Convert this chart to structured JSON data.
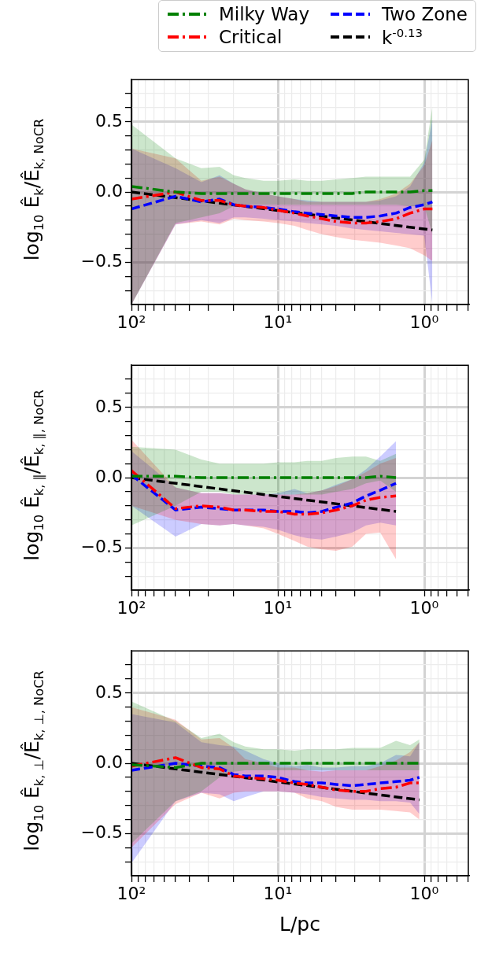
{
  "chart_data": [
    {
      "type": "line",
      "ylabel": "log$_{10}$ Ê$_{k}$/Ê$_{k, NoCR}$",
      "x": [
        100,
        50,
        33.3,
        25,
        20,
        16.7,
        12.5,
        10,
        7.7,
        6.3,
        5,
        4,
        3.1,
        2.5,
        2,
        1.56,
        1.25,
        1,
        0.88
      ],
      "series": [
        {
          "name": "Milky Way",
          "color": "#008000",
          "line_style": "dashdot",
          "values": [
            0.04,
            0.0,
            -0.01,
            -0.01,
            -0.01,
            -0.01,
            -0.01,
            -0.01,
            -0.01,
            -0.01,
            -0.01,
            -0.01,
            -0.01,
            0.0,
            0.0,
            0.0,
            0.0,
            0.01,
            0.01
          ],
          "lower": [
            -0.8,
            -0.22,
            -0.18,
            -0.15,
            -0.1,
            -0.09,
            -0.09,
            -0.09,
            -0.09,
            -0.09,
            -0.09,
            -0.09,
            -0.09,
            -0.09,
            -0.09,
            -0.09,
            -0.1,
            -0.1,
            -0.3
          ],
          "upper": [
            0.48,
            0.24,
            0.17,
            0.18,
            0.12,
            0.1,
            0.08,
            0.08,
            0.09,
            0.08,
            0.08,
            0.09,
            0.1,
            0.11,
            0.11,
            0.11,
            0.11,
            0.23,
            0.61
          ]
        },
        {
          "name": "Critical",
          "color": "#ff0000",
          "line_style": "dashdot",
          "values": [
            -0.05,
            0.0,
            -0.06,
            -0.06,
            -0.09,
            -0.1,
            -0.11,
            -0.13,
            -0.15,
            -0.17,
            -0.19,
            -0.21,
            -0.22,
            -0.22,
            -0.21,
            -0.19,
            -0.15,
            -0.12,
            -0.12
          ],
          "lower": [
            -0.8,
            -0.23,
            -0.21,
            -0.23,
            -0.19,
            -0.2,
            -0.21,
            -0.22,
            -0.24,
            -0.27,
            -0.3,
            -0.32,
            -0.34,
            -0.35,
            -0.36,
            -0.38,
            -0.4,
            -0.45,
            -0.49
          ],
          "upper": [
            0.31,
            0.24,
            0.08,
            0.11,
            0.06,
            0.02,
            -0.01,
            -0.03,
            -0.05,
            -0.07,
            -0.07,
            -0.07,
            -0.07,
            -0.07,
            -0.05,
            -0.01,
            0.06,
            0.19,
            0.37
          ]
        },
        {
          "name": "Two Zone",
          "color": "#0000ff",
          "line_style": "dashed",
          "values": [
            -0.12,
            -0.03,
            -0.07,
            -0.05,
            -0.09,
            -0.1,
            -0.11,
            -0.12,
            -0.14,
            -0.15,
            -0.16,
            -0.17,
            -0.18,
            -0.18,
            -0.17,
            -0.15,
            -0.11,
            -0.09,
            -0.07
          ],
          "lower": [
            -0.8,
            -0.23,
            -0.2,
            -0.22,
            -0.18,
            -0.18,
            -0.19,
            -0.2,
            -0.21,
            -0.22,
            -0.23,
            -0.24,
            -0.26,
            -0.27,
            -0.28,
            -0.29,
            -0.3,
            -0.31,
            -0.8
          ],
          "upper": [
            0.31,
            0.17,
            0.07,
            0.12,
            0.06,
            0.02,
            -0.01,
            -0.03,
            -0.05,
            -0.06,
            -0.07,
            -0.07,
            -0.07,
            -0.07,
            -0.06,
            -0.03,
            0.04,
            0.21,
            0.52
          ]
        },
        {
          "name": "k$^{-0.13}$",
          "color": "#000000",
          "line_style": "dashed",
          "x": [
            100,
            0.88
          ],
          "values": [
            0,
            -0.27
          ]
        }
      ],
      "xlim": [
        100,
        0.5
      ],
      "xticks": [
        {
          "value": 100,
          "label": "10²"
        },
        {
          "value": 90,
          "label": null
        },
        {
          "value": 80,
          "label": null
        },
        {
          "value": 70,
          "label": null
        },
        {
          "value": 60,
          "label": null
        },
        {
          "value": 50,
          "label": null
        },
        {
          "value": 40,
          "label": null
        },
        {
          "value": 30,
          "label": null
        },
        {
          "value": 20,
          "label": null
        },
        {
          "value": 10,
          "label": "10¹"
        },
        {
          "value": 9,
          "label": null
        },
        {
          "value": 8,
          "label": null
        },
        {
          "value": 7,
          "label": null
        },
        {
          "value": 6,
          "label": null
        },
        {
          "value": 5,
          "label": null
        },
        {
          "value": 4,
          "label": null
        },
        {
          "value": 3,
          "label": null
        },
        {
          "value": 2,
          "label": null
        },
        {
          "value": 1,
          "label": "10⁰"
        },
        {
          "value": 0.9,
          "label": null
        },
        {
          "value": 0.8,
          "label": null
        },
        {
          "value": 0.7,
          "label": null
        },
        {
          "value": 0.6,
          "label": null
        },
        {
          "value": 0.5,
          "label": null
        }
      ],
      "ylim": [
        -0.8,
        0.8
      ],
      "yticks": [
        {
          "value": -0.7,
          "label": null
        },
        {
          "value": -0.6,
          "label": null
        },
        {
          "value": -0.5,
          "label": "−0.5"
        },
        {
          "value": -0.4,
          "label": null
        },
        {
          "value": -0.3,
          "label": null
        },
        {
          "value": -0.2,
          "label": null
        },
        {
          "value": -0.1,
          "label": null
        },
        {
          "value": 0,
          "label": "0.0"
        },
        {
          "value": 0.1,
          "label": null
        },
        {
          "value": 0.2,
          "label": null
        },
        {
          "value": 0.3,
          "label": null
        },
        {
          "value": 0.4,
          "label": null
        },
        {
          "value": 0.5,
          "label": "0.5"
        },
        {
          "value": 0.6,
          "label": null
        },
        {
          "value": 0.7,
          "label": null
        }
      ],
      "log": "x",
      "grid": true,
      "legend": "top right"
    },
    {
      "type": "line",
      "ylabel": "log$_{10}$ Ê$_{k, ∥}$/Ê$_{k, ∥, NoCR}$",
      "x": [
        100,
        50,
        33.3,
        25,
        20,
        16.7,
        12.5,
        10,
        7.7,
        6.3,
        5,
        4,
        3.1,
        2.5,
        2,
        1.56
      ],
      "series": [
        {
          "color": "#008000",
          "line_style": "dashdot",
          "values": [
            0.01,
            0.01,
            0.0,
            0.0,
            0.0,
            0.0,
            0.0,
            0.0,
            0.0,
            0.0,
            0.0,
            0.0,
            0.0,
            0.0,
            0.01,
            0.0
          ],
          "lower": [
            -0.34,
            -0.2,
            -0.1,
            -0.1,
            -0.12,
            -0.12,
            -0.12,
            -0.12,
            -0.12,
            -0.12,
            -0.12,
            -0.1,
            -0.08,
            -0.04,
            -0.02,
            -0.1
          ],
          "upper": [
            0.22,
            0.2,
            0.13,
            0.1,
            0.1,
            0.1,
            0.1,
            0.11,
            0.11,
            0.12,
            0.12,
            0.14,
            0.15,
            0.15,
            0.12,
            0.17
          ]
        },
        {
          "color": "#ff0000",
          "line_style": "dashdot",
          "values": [
            0.05,
            -0.22,
            -0.2,
            -0.21,
            -0.23,
            -0.23,
            -0.24,
            -0.24,
            -0.26,
            -0.26,
            -0.25,
            -0.23,
            -0.2,
            -0.16,
            -0.14,
            -0.13
          ],
          "lower": [
            -0.2,
            -0.3,
            -0.33,
            -0.34,
            -0.33,
            -0.34,
            -0.36,
            -0.4,
            -0.45,
            -0.49,
            -0.51,
            -0.52,
            -0.49,
            -0.4,
            -0.39,
            -0.58
          ],
          "upper": [
            0.27,
            -0.07,
            -0.11,
            -0.11,
            -0.12,
            -0.12,
            -0.12,
            -0.12,
            -0.12,
            -0.11,
            -0.09,
            -0.06,
            -0.01,
            0.04,
            0.1,
            0.14
          ]
        },
        {
          "color": "#0000ff",
          "line_style": "dashed",
          "values": [
            0.02,
            -0.23,
            -0.21,
            -0.22,
            -0.23,
            -0.23,
            -0.23,
            -0.24,
            -0.24,
            -0.25,
            -0.24,
            -0.21,
            -0.18,
            -0.13,
            -0.09,
            -0.04
          ],
          "lower": [
            -0.2,
            -0.42,
            -0.33,
            -0.34,
            -0.33,
            -0.34,
            -0.35,
            -0.37,
            -0.41,
            -0.43,
            -0.44,
            -0.42,
            -0.39,
            -0.34,
            -0.32,
            -0.34
          ],
          "upper": [
            0.19,
            -0.07,
            -0.11,
            -0.11,
            -0.12,
            -0.12,
            -0.12,
            -0.11,
            -0.08,
            -0.11,
            -0.09,
            -0.05,
            -0.01,
            0.06,
            0.15,
            0.26
          ]
        },
        {
          "color": "#000000",
          "line_style": "dashed",
          "x": [
            100,
            1.56
          ],
          "values": [
            0,
            -0.24
          ]
        }
      ],
      "xlim": [
        100,
        0.5
      ],
      "xticks": [
        {
          "value": 100,
          "label": "10²"
        },
        {
          "value": 90,
          "label": null
        },
        {
          "value": 80,
          "label": null
        },
        {
          "value": 70,
          "label": null
        },
        {
          "value": 60,
          "label": null
        },
        {
          "value": 50,
          "label": null
        },
        {
          "value": 40,
          "label": null
        },
        {
          "value": 30,
          "label": null
        },
        {
          "value": 20,
          "label": null
        },
        {
          "value": 10,
          "label": "10¹"
        },
        {
          "value": 9,
          "label": null
        },
        {
          "value": 8,
          "label": null
        },
        {
          "value": 7,
          "label": null
        },
        {
          "value": 6,
          "label": null
        },
        {
          "value": 5,
          "label": null
        },
        {
          "value": 4,
          "label": null
        },
        {
          "value": 3,
          "label": null
        },
        {
          "value": 2,
          "label": null
        },
        {
          "value": 1,
          "label": "10⁰"
        },
        {
          "value": 0.9,
          "label": null
        },
        {
          "value": 0.8,
          "label": null
        },
        {
          "value": 0.7,
          "label": null
        },
        {
          "value": 0.6,
          "label": null
        },
        {
          "value": 0.5,
          "label": null
        }
      ],
      "ylim": [
        -0.8,
        0.8
      ],
      "yticks": [
        {
          "value": -0.7,
          "label": null
        },
        {
          "value": -0.6,
          "label": null
        },
        {
          "value": -0.5,
          "label": "−0.5"
        },
        {
          "value": -0.4,
          "label": null
        },
        {
          "value": -0.3,
          "label": null
        },
        {
          "value": -0.2,
          "label": null
        },
        {
          "value": -0.1,
          "label": null
        },
        {
          "value": 0,
          "label": "0.0"
        },
        {
          "value": 0.1,
          "label": null
        },
        {
          "value": 0.2,
          "label": null
        },
        {
          "value": 0.3,
          "label": null
        },
        {
          "value": 0.4,
          "label": null
        },
        {
          "value": 0.5,
          "label": "0.5"
        },
        {
          "value": 0.6,
          "label": null
        },
        {
          "value": 0.7,
          "label": null
        }
      ],
      "log": "x",
      "grid": true
    },
    {
      "type": "line",
      "xlabel": "L/pc",
      "ylabel": "log$_{10}$ Ê$_{k, ⊥}$/Ê$_{k, ⊥, NoCR}$",
      "x": [
        100,
        50,
        33.3,
        25,
        20,
        16.7,
        12.5,
        10,
        7.7,
        6.3,
        5,
        4,
        3.1,
        2.5,
        2,
        1.56,
        1.25,
        1.08
      ],
      "series": [
        {
          "color": "#008000",
          "line_style": "dashdot",
          "values": [
            -0.01,
            -0.03,
            0.0,
            0.0,
            0.0,
            0.0,
            0.0,
            0.0,
            0.0,
            0.0,
            0.0,
            0.0,
            0.0,
            0.0,
            0.0,
            0.0,
            0.0,
            0.0
          ],
          "lower": [
            -0.57,
            -0.27,
            -0.2,
            -0.1,
            -0.06,
            -0.05,
            -0.05,
            -0.05,
            -0.05,
            -0.05,
            -0.05,
            -0.05,
            -0.05,
            -0.05,
            -0.05,
            -0.05,
            -0.05,
            -0.05
          ],
          "upper": [
            0.44,
            0.3,
            0.18,
            0.21,
            0.15,
            0.12,
            0.1,
            0.1,
            0.09,
            0.1,
            0.1,
            0.1,
            0.11,
            0.11,
            0.11,
            0.16,
            0.13,
            0.17
          ]
        },
        {
          "color": "#ff0000",
          "line_style": "dashdot",
          "values": [
            -0.02,
            0.04,
            -0.03,
            -0.04,
            -0.09,
            -0.1,
            -0.11,
            -0.12,
            -0.14,
            -0.15,
            -0.17,
            -0.19,
            -0.2,
            -0.2,
            -0.18,
            -0.17,
            -0.14,
            -0.14
          ],
          "lower": [
            -0.6,
            -0.29,
            -0.21,
            -0.25,
            -0.21,
            -0.2,
            -0.2,
            -0.2,
            -0.21,
            -0.25,
            -0.27,
            -0.31,
            -0.33,
            -0.33,
            -0.33,
            -0.34,
            -0.35,
            -0.4
          ],
          "upper": [
            0.4,
            0.31,
            0.17,
            0.18,
            0.11,
            0.03,
            0.0,
            -0.03,
            -0.03,
            -0.05,
            -0.06,
            -0.05,
            -0.05,
            -0.05,
            -0.02,
            0.02,
            0.08,
            0.15
          ]
        },
        {
          "color": "#0000ff",
          "line_style": "dashed",
          "values": [
            -0.05,
            0.0,
            -0.02,
            -0.03,
            -0.08,
            -0.09,
            -0.09,
            -0.1,
            -0.13,
            -0.14,
            -0.14,
            -0.15,
            -0.16,
            -0.15,
            -0.14,
            -0.13,
            -0.12,
            -0.1
          ],
          "lower": [
            -0.71,
            -0.27,
            -0.21,
            -0.22,
            -0.27,
            -0.24,
            -0.2,
            -0.2,
            -0.21,
            -0.22,
            -0.24,
            -0.25,
            -0.26,
            -0.26,
            -0.27,
            -0.27,
            -0.28,
            -0.36
          ],
          "upper": [
            0.35,
            0.29,
            0.15,
            0.13,
            0.12,
            0.09,
            0.03,
            0.0,
            -0.02,
            -0.01,
            -0.03,
            -0.03,
            -0.02,
            -0.02,
            0.0,
            0.06,
            0.05,
            0.15
          ]
        },
        {
          "color": "#000000",
          "line_style": "dashed",
          "x": [
            100,
            1.08
          ],
          "values": [
            0,
            -0.26
          ]
        }
      ],
      "xlim": [
        100,
        0.5
      ],
      "xticks": [
        {
          "value": 100,
          "label": "10²"
        },
        {
          "value": 90,
          "label": null
        },
        {
          "value": 80,
          "label": null
        },
        {
          "value": 70,
          "label": null
        },
        {
          "value": 60,
          "label": null
        },
        {
          "value": 50,
          "label": null
        },
        {
          "value": 40,
          "label": null
        },
        {
          "value": 30,
          "label": null
        },
        {
          "value": 20,
          "label": null
        },
        {
          "value": 10,
          "label": "10¹"
        },
        {
          "value": 9,
          "label": null
        },
        {
          "value": 8,
          "label": null
        },
        {
          "value": 7,
          "label": null
        },
        {
          "value": 6,
          "label": null
        },
        {
          "value": 5,
          "label": null
        },
        {
          "value": 4,
          "label": null
        },
        {
          "value": 3,
          "label": null
        },
        {
          "value": 2,
          "label": null
        },
        {
          "value": 1,
          "label": "10⁰"
        },
        {
          "value": 0.9,
          "label": null
        },
        {
          "value": 0.8,
          "label": null
        },
        {
          "value": 0.7,
          "label": null
        },
        {
          "value": 0.6,
          "label": null
        },
        {
          "value": 0.5,
          "label": null
        }
      ],
      "ylim": [
        -0.8,
        0.8
      ],
      "yticks": [
        {
          "value": -0.7,
          "label": null
        },
        {
          "value": -0.6,
          "label": null
        },
        {
          "value": -0.5,
          "label": "−0.5"
        },
        {
          "value": -0.4,
          "label": null
        },
        {
          "value": -0.3,
          "label": null
        },
        {
          "value": -0.2,
          "label": null
        },
        {
          "value": -0.1,
          "label": null
        },
        {
          "value": 0,
          "label": "0.0"
        },
        {
          "value": 0.1,
          "label": null
        },
        {
          "value": 0.2,
          "label": null
        },
        {
          "value": 0.3,
          "label": null
        },
        {
          "value": 0.4,
          "label": null
        },
        {
          "value": 0.5,
          "label": "0.5"
        },
        {
          "value": 0.6,
          "label": null
        },
        {
          "value": 0.7,
          "label": null
        }
      ],
      "log": "x",
      "grid": true
    }
  ]
}
